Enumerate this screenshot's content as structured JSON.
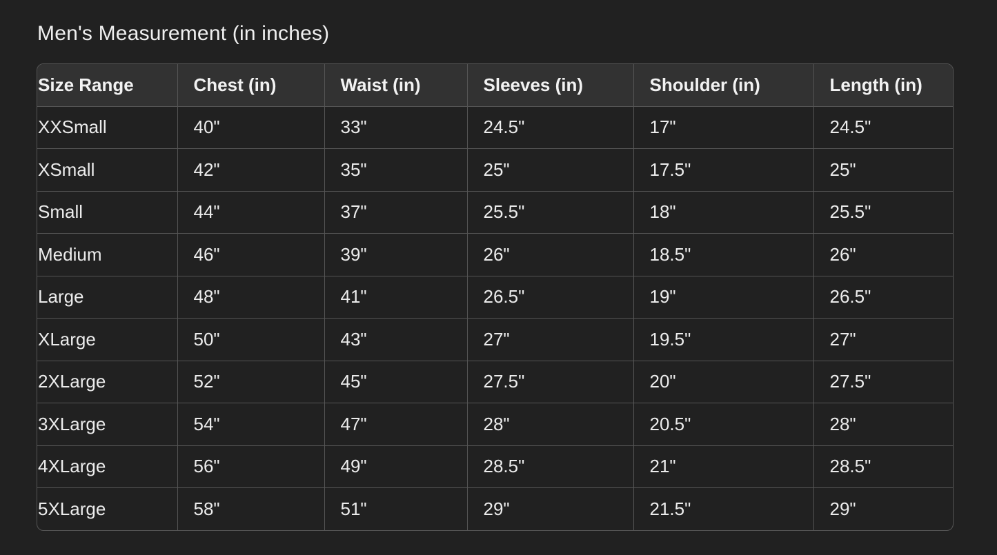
{
  "title": "Men's Measurement (in inches)",
  "table": {
    "headers": [
      "Size Range",
      "Chest (in)",
      "Waist (in)",
      "Sleeves (in)",
      "Shoulder (in)",
      "Length (in)"
    ],
    "rows": [
      [
        "XXSmall",
        "40\"",
        "33\"",
        "24.5\"",
        "17\"",
        "24.5\""
      ],
      [
        "XSmall",
        "42\"",
        "35\"",
        "25\"",
        "17.5\"",
        "25\""
      ],
      [
        "Small",
        "44\"",
        "37\"",
        "25.5\"",
        "18\"",
        "25.5\""
      ],
      [
        "Medium",
        "46\"",
        "39\"",
        "26\"",
        "18.5\"",
        "26\""
      ],
      [
        "Large",
        "48\"",
        "41\"",
        "26.5\"",
        "19\"",
        "26.5\""
      ],
      [
        "XLarge",
        "50\"",
        "43\"",
        "27\"",
        "19.5\"",
        "27\""
      ],
      [
        "2XLarge",
        "52\"",
        "45\"",
        "27.5\"",
        "20\"",
        "27.5\""
      ],
      [
        "3XLarge",
        "54\"",
        "47\"",
        "28\"",
        "20.5\"",
        "28\""
      ],
      [
        "4XLarge",
        "56\"",
        "49\"",
        "28.5\"",
        "21\"",
        "28.5\""
      ],
      [
        "5XLarge",
        "58\"",
        "51\"",
        "29\"",
        "21.5\"",
        "29\""
      ]
    ]
  }
}
